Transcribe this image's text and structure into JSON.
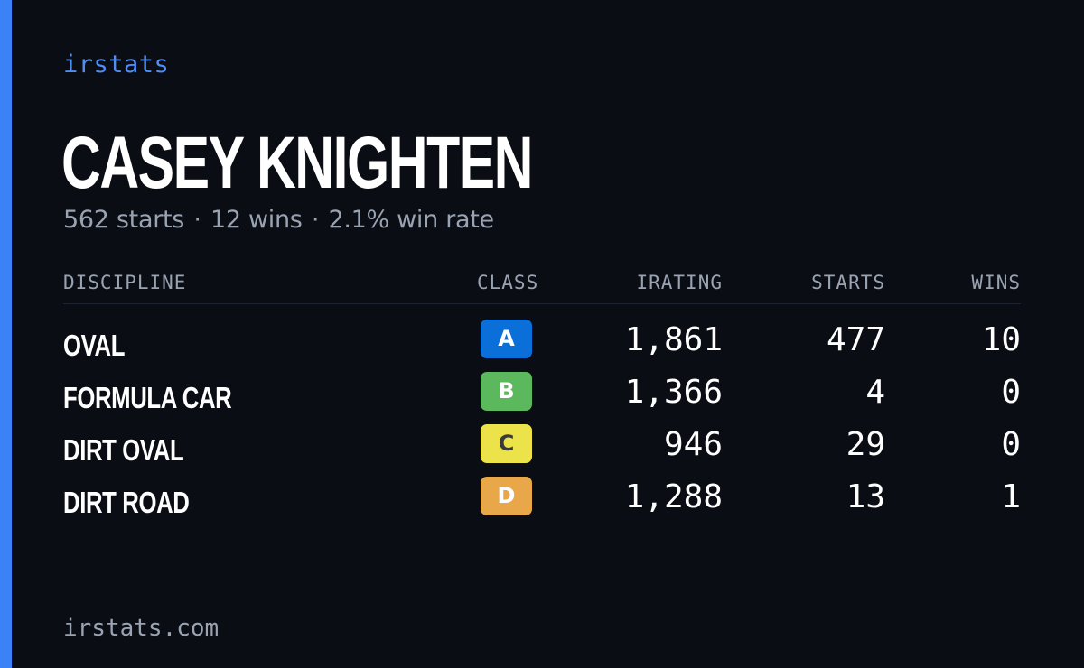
{
  "brand": "irstats",
  "driver": {
    "name": "CASEY KNIGHTEN"
  },
  "summary": {
    "starts": "562 starts",
    "wins": "12 wins",
    "win_rate": "2.1% win rate",
    "separator": "·"
  },
  "table": {
    "headers": {
      "discipline": "DISCIPLINE",
      "class": "CLASS",
      "irating": "IRATING",
      "starts": "STARTS",
      "wins": "WINS"
    },
    "rows": [
      {
        "discipline": "OVAL",
        "class": "A",
        "class_color": "#0a6fd8",
        "class_text_color": "#ffffff",
        "irating": "1,861",
        "starts": "477",
        "wins": "10"
      },
      {
        "discipline": "FORMULA CAR",
        "class": "B",
        "class_color": "#5cb85c",
        "class_text_color": "#ffffff",
        "irating": "1,366",
        "starts": "4",
        "wins": "0"
      },
      {
        "discipline": "DIRT OVAL",
        "class": "C",
        "class_color": "#ece24a",
        "class_text_color": "#3a3a3a",
        "irating": "946",
        "starts": "29",
        "wins": "0"
      },
      {
        "discipline": "DIRT ROAD",
        "class": "D",
        "class_color": "#e8a84a",
        "class_text_color": "#ffffff",
        "irating": "1,288",
        "starts": "13",
        "wins": "1"
      }
    ]
  },
  "footer": {
    "domain": "irstats.com"
  },
  "colors": {
    "background": "#0a0d14",
    "accent": "#3b82f6",
    "brand": "#4f8ef7",
    "muted_text": "#9aa3b2"
  }
}
